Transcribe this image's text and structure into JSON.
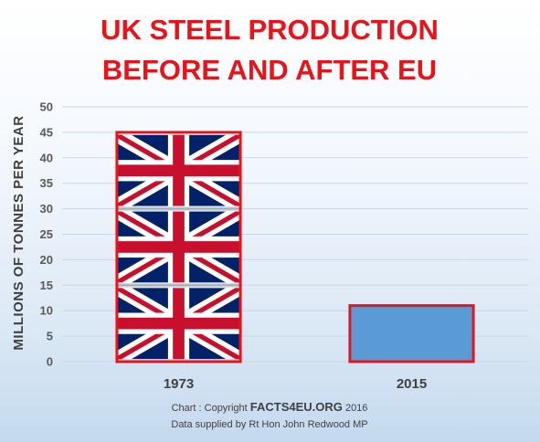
{
  "chart_data": {
    "type": "bar",
    "title_lines": [
      "UK STEEL PRODUCTION",
      "BEFORE AND AFTER EU"
    ],
    "categories": [
      "1973",
      "2015"
    ],
    "values": [
      45,
      11
    ],
    "ylabel": "MILLIONS OF TONNES PER YEAR",
    "xlabel": "",
    "ylim": [
      0,
      50
    ],
    "yticks": [
      0,
      5,
      10,
      15,
      20,
      25,
      30,
      35,
      40,
      45,
      50
    ],
    "grid": true,
    "legend": "none",
    "colors": {
      "title": "#e8141b",
      "bar_2015_fill": "#5b9bd5",
      "bar_outline": "#e8141b",
      "flag_blue": "#012169",
      "flag_red": "#c8102e"
    },
    "bar_fill_icons": [
      "union-jack-flag-icon",
      "solid-blue"
    ]
  },
  "credits": {
    "line1_prefix": "Chart : Copyright ",
    "line1_strong": "FACTS4EU.ORG",
    "line1_suffix": " 2016",
    "line2": "Data supplied by Rt Hon John Redwood MP"
  }
}
